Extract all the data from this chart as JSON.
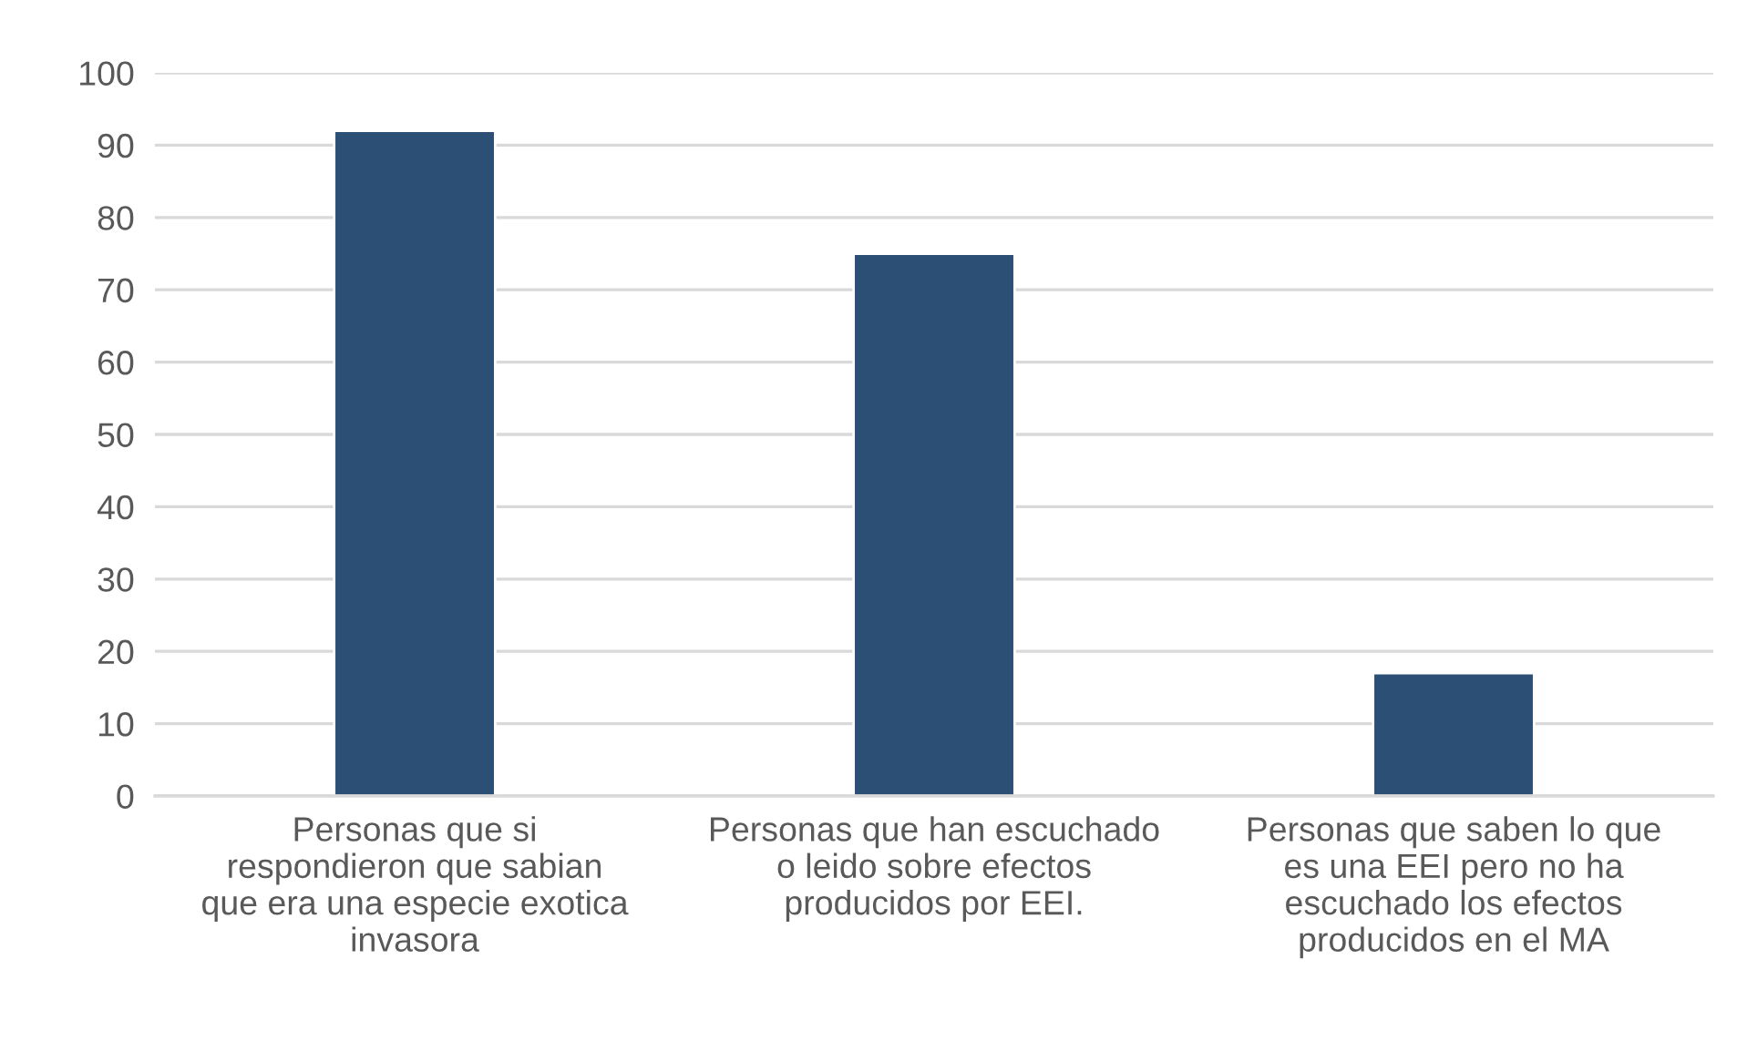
{
  "chart_data": {
    "type": "bar",
    "categories": [
      "Personas que si\nrespondieron que sabian\nque era una especie exotica\ninvasora",
      "Personas que han escuchado\no leido sobre efectos\nproducidos por EEI.",
      "Personas que saben lo que\nes una EEI pero no ha\nescuchado los efectos\nproducidos en el MA"
    ],
    "values": [
      92,
      75,
      17
    ],
    "color": "#2c4f76",
    "ylim": [
      0,
      100
    ],
    "yticks": [
      0,
      10,
      20,
      30,
      40,
      50,
      60,
      70,
      80,
      90,
      100
    ],
    "grid": "y",
    "legend": false
  }
}
